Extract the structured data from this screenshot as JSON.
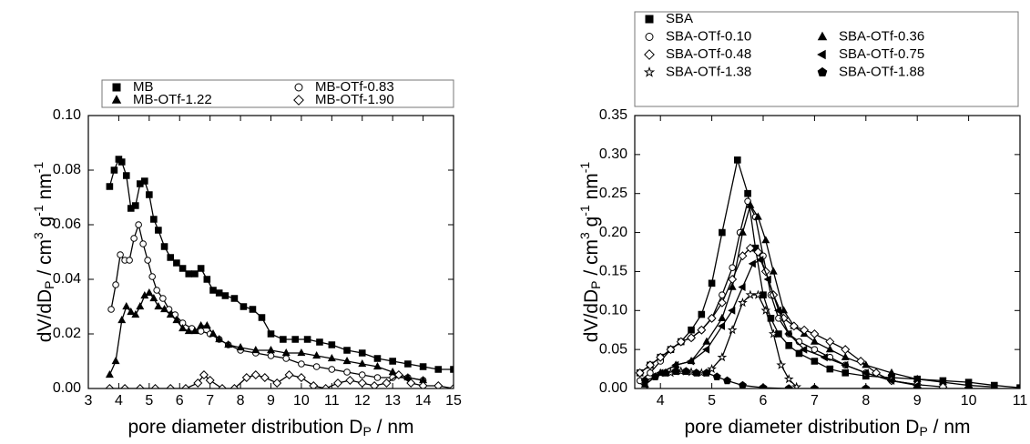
{
  "chart_data": [
    {
      "type": "line",
      "xlabel": [
        "pore diameter distribution D",
        "P",
        " / nm"
      ],
      "ylabel": [
        "dV/dD",
        "P",
        " / cm",
        "3",
        " g",
        "-1",
        " nm",
        "-1"
      ],
      "xlim": [
        3,
        15
      ],
      "xticks": [
        3,
        4,
        5,
        6,
        7,
        8,
        9,
        10,
        11,
        12,
        13,
        14,
        15
      ],
      "ylim": [
        0,
        0.1
      ],
      "yticks": [
        {
          "value": 0,
          "label": "0.00"
        },
        {
          "value": 0.02,
          "label": "0.02"
        },
        {
          "value": 0.04,
          "label": "0.04"
        },
        {
          "value": 0.06,
          "label": "0.06"
        },
        {
          "value": 0.08,
          "label": "0.08"
        },
        {
          "value": 0.1,
          "label": "0.10"
        }
      ],
      "series": [
        {
          "name": "MB",
          "color": "#000000",
          "marker": "square",
          "x": [
            3.7,
            3.85,
            4.0,
            4.1,
            4.25,
            4.4,
            4.55,
            4.7,
            4.85,
            5.0,
            5.15,
            5.3,
            5.5,
            5.7,
            5.9,
            6.1,
            6.3,
            6.5,
            6.7,
            6.9,
            7.1,
            7.3,
            7.5,
            7.8,
            8.1,
            8.4,
            8.7,
            9.0,
            9.4,
            9.8,
            10.2,
            10.6,
            11.0,
            11.5,
            12.0,
            12.5,
            13.0,
            13.5,
            14.0,
            14.5,
            15.0
          ],
          "values": [
            0.074,
            0.08,
            0.084,
            0.083,
            0.078,
            0.066,
            0.067,
            0.075,
            0.076,
            0.071,
            0.062,
            0.058,
            0.052,
            0.048,
            0.046,
            0.044,
            0.042,
            0.042,
            0.044,
            0.04,
            0.036,
            0.035,
            0.034,
            0.033,
            0.03,
            0.029,
            0.026,
            0.02,
            0.018,
            0.018,
            0.018,
            0.017,
            0.016,
            0.014,
            0.013,
            0.011,
            0.01,
            0.009,
            0.008,
            0.007,
            0.007
          ]
        },
        {
          "name": "MB-OTf-0.83",
          "color": "#000000",
          "marker": "circle",
          "x": [
            3.75,
            3.9,
            4.05,
            4.2,
            4.35,
            4.5,
            4.65,
            4.8,
            4.95,
            5.1,
            5.25,
            5.45,
            5.65,
            5.85,
            6.1,
            6.4,
            6.7,
            7.0,
            7.3,
            7.6,
            8.0,
            8.5,
            9.0,
            9.5,
            10,
            10.5,
            11,
            11.5,
            12,
            12.5,
            13,
            13.5,
            14
          ],
          "values": [
            0.029,
            0.038,
            0.049,
            0.047,
            0.047,
            0.055,
            0.06,
            0.053,
            0.047,
            0.041,
            0.036,
            0.033,
            0.029,
            0.027,
            0.024,
            0.022,
            0.021,
            0.02,
            0.018,
            0.016,
            0.014,
            0.013,
            0.012,
            0.011,
            0.009,
            0.008,
            0.007,
            0.006,
            0.005,
            0.004,
            0.004,
            0.004,
            0.003
          ]
        },
        {
          "name": "MB-OTf-1.22",
          "color": "#000000",
          "marker": "triangle",
          "x": [
            3.7,
            3.9,
            4.1,
            4.25,
            4.4,
            4.55,
            4.7,
            4.85,
            5.0,
            5.15,
            5.3,
            5.5,
            5.7,
            5.9,
            6.1,
            6.3,
            6.5,
            6.7,
            6.9,
            7.1,
            7.3,
            7.6,
            8.0,
            8.5,
            9.0,
            9.5,
            10.0,
            10.5,
            11.0,
            11.5,
            12.0,
            12.5,
            13.0,
            13.5,
            14.0
          ],
          "values": [
            0.005,
            0.01,
            0.025,
            0.03,
            0.028,
            0.027,
            0.03,
            0.034,
            0.035,
            0.033,
            0.03,
            0.029,
            0.027,
            0.025,
            0.022,
            0.021,
            0.021,
            0.023,
            0.023,
            0.02,
            0.018,
            0.016,
            0.015,
            0.014,
            0.014,
            0.013,
            0.013,
            0.012,
            0.011,
            0.01,
            0.009,
            0.008,
            0.006,
            0.004,
            0.003
          ]
        },
        {
          "name": "MB-OTf-1.90",
          "color": "#000000",
          "marker": "diamond",
          "x": [
            3.7,
            4.2,
            4.7,
            5.2,
            5.7,
            6.2,
            6.6,
            6.8,
            7.0,
            7.4,
            7.8,
            8.2,
            8.5,
            8.8,
            9.2,
            9.6,
            10.0,
            10.4,
            10.8,
            11.2,
            11.6,
            12.0,
            12.4,
            12.8,
            13.2,
            13.6,
            14.0,
            14.5,
            15.0
          ],
          "values": [
            0,
            0,
            0,
            0,
            0,
            0,
            0.002,
            0.005,
            0.003,
            0,
            0,
            0.004,
            0.005,
            0.004,
            0.002,
            0.005,
            0.004,
            0.001,
            0,
            0.002,
            0.003,
            0.002,
            0.001,
            0.002,
            0.005,
            0.002,
            0.001,
            0.001,
            0
          ]
        }
      ]
    },
    {
      "type": "line",
      "xlabel": [
        "pore diameter distribution D",
        "P",
        " / nm"
      ],
      "ylabel": [
        "dV/dD",
        "P",
        " / cm",
        "3",
        " g",
        "-1",
        " nm",
        "-1"
      ],
      "xlim": [
        3.5,
        11
      ],
      "xticks": [
        4,
        5,
        6,
        7,
        8,
        9,
        10,
        11
      ],
      "ylim": [
        0,
        0.35
      ],
      "yticks": [
        {
          "value": 0,
          "label": "0.00"
        },
        {
          "value": 0.05,
          "label": "0.05"
        },
        {
          "value": 0.1,
          "label": "0.10"
        },
        {
          "value": 0.15,
          "label": "0.15"
        },
        {
          "value": 0.2,
          "label": "0.20"
        },
        {
          "value": 0.25,
          "label": "0.25"
        },
        {
          "value": 0.3,
          "label": "0.30"
        },
        {
          "value": 0.35,
          "label": "0.35"
        }
      ],
      "series": [
        {
          "name": "SBA",
          "color": "#000000",
          "marker": "square",
          "x": [
            3.6,
            3.8,
            4.0,
            4.2,
            4.4,
            4.6,
            4.8,
            5.0,
            5.2,
            5.5,
            5.7,
            5.85,
            6.0,
            6.15,
            6.3,
            6.5,
            6.7,
            7.0,
            7.3,
            7.6,
            8.0,
            8.5,
            9,
            9.5,
            10,
            10.5,
            11
          ],
          "values": [
            0.02,
            0.03,
            0.04,
            0.05,
            0.06,
            0.075,
            0.095,
            0.135,
            0.2,
            0.293,
            0.25,
            0.18,
            0.12,
            0.09,
            0.07,
            0.055,
            0.045,
            0.035,
            0.025,
            0.02,
            0.016,
            0.014,
            0.012,
            0.01,
            0.008,
            0.004,
            0.001
          ]
        },
        {
          "name": "SBA-OTf-0.10",
          "color": "#000000",
          "marker": "circle",
          "x": [
            3.6,
            3.8,
            4.0,
            4.2,
            4.4,
            4.6,
            4.8,
            5.0,
            5.2,
            5.4,
            5.55,
            5.7,
            5.85,
            6.0,
            6.15,
            6.3,
            6.5,
            6.7,
            7.0,
            7.3,
            7.6,
            8.0,
            8.5,
            9
          ],
          "values": [
            0.01,
            0.02,
            0.035,
            0.05,
            0.06,
            0.065,
            0.075,
            0.09,
            0.12,
            0.155,
            0.2,
            0.24,
            0.22,
            0.17,
            0.12,
            0.09,
            0.07,
            0.06,
            0.05,
            0.04,
            0.03,
            0.02,
            0.01,
            0.005
          ]
        },
        {
          "name": "SBA-OTf-0.36",
          "color": "#000000",
          "marker": "triangle",
          "x": [
            3.7,
            4.0,
            4.3,
            4.6,
            4.9,
            5.2,
            5.4,
            5.6,
            5.75,
            5.9,
            6.05,
            6.2,
            6.4,
            6.6,
            6.8,
            7.0,
            7.3,
            7.6,
            8.0,
            8.5,
            9,
            9.5,
            10,
            10.5
          ],
          "values": [
            0.005,
            0.02,
            0.03,
            0.035,
            0.06,
            0.09,
            0.13,
            0.2,
            0.235,
            0.22,
            0.19,
            0.15,
            0.1,
            0.08,
            0.07,
            0.06,
            0.05,
            0.04,
            0.03,
            0.02,
            0.012,
            0.008,
            0.004,
            0.002
          ]
        },
        {
          "name": "SBA-OTf-0.48",
          "color": "#000000",
          "marker": "diamond",
          "x": [
            3.6,
            3.8,
            4.0,
            4.2,
            4.4,
            4.6,
            4.8,
            5.0,
            5.2,
            5.4,
            5.6,
            5.75,
            5.9,
            6.05,
            6.2,
            6.4,
            6.6,
            6.8,
            7.0,
            7.3,
            7.6,
            7.9,
            8.2,
            8.5,
            9.0,
            9.5
          ],
          "values": [
            0.02,
            0.03,
            0.04,
            0.05,
            0.06,
            0.065,
            0.075,
            0.09,
            0.11,
            0.14,
            0.17,
            0.18,
            0.175,
            0.15,
            0.12,
            0.09,
            0.08,
            0.075,
            0.07,
            0.06,
            0.05,
            0.035,
            0.02,
            0.01,
            0.005,
            0.002
          ]
        },
        {
          "name": "SBA-OTf-0.75",
          "color": "#000000",
          "marker": "left-triangle",
          "x": [
            3.7,
            4.0,
            4.3,
            4.6,
            4.9,
            5.2,
            5.4,
            5.6,
            5.8,
            5.95,
            6.1,
            6.3,
            6.5,
            6.8,
            7.2,
            7.6,
            8,
            8.5,
            9
          ],
          "values": [
            0.005,
            0.02,
            0.03,
            0.035,
            0.05,
            0.08,
            0.1,
            0.13,
            0.16,
            0.165,
            0.14,
            0.1,
            0.07,
            0.05,
            0.04,
            0.03,
            0.02,
            0.01,
            0.004
          ]
        },
        {
          "name": "SBA-OTf-1.38",
          "color": "#000000",
          "marker": "star",
          "x": [
            4.2,
            4.4,
            4.6,
            4.8,
            5.0,
            5.2,
            5.4,
            5.6,
            5.75,
            5.9,
            6.05,
            6.2,
            6.35,
            6.5,
            6.65
          ],
          "values": [
            0.02,
            0.022,
            0.021,
            0.02,
            0.025,
            0.04,
            0.075,
            0.11,
            0.12,
            0.12,
            0.1,
            0.07,
            0.03,
            0.012,
            0.002
          ]
        },
        {
          "name": "SBA-OTf-1.88",
          "color": "#000000",
          "marker": "pentagon",
          "x": [
            3.7,
            3.9,
            4.1,
            4.3,
            4.5,
            4.7,
            4.9,
            5.1,
            5.3,
            5.6,
            6.0,
            6.5,
            7,
            8,
            9,
            10,
            11
          ],
          "values": [
            0.01,
            0.015,
            0.02,
            0.022,
            0.022,
            0.02,
            0.02,
            0.015,
            0.01,
            0.004,
            0.001,
            0,
            0,
            0,
            0,
            0,
            0
          ]
        }
      ]
    }
  ]
}
